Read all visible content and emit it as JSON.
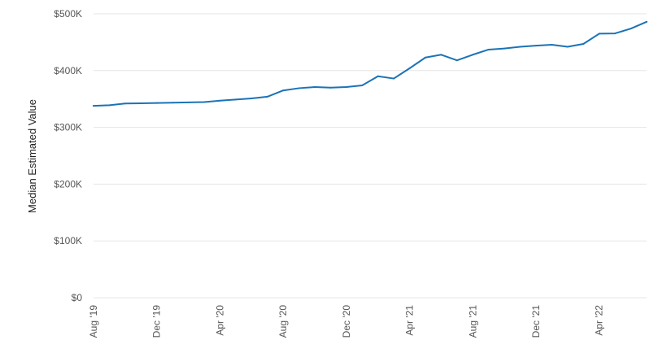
{
  "chart_data": {
    "type": "line",
    "ylabel": "Median Estimated Value",
    "ylim": [
      0,
      500000
    ],
    "y_ticks": [
      0,
      100000,
      200000,
      300000,
      400000,
      500000
    ],
    "y_tick_labels": [
      "$0",
      "$100K",
      "$200K",
      "$300K",
      "$400K",
      "$500K"
    ],
    "x_tick_labels": [
      "Aug '19",
      "Dec '19",
      "Apr '20",
      "Aug '20",
      "Dec '20",
      "Apr '21",
      "Aug '21",
      "Dec '21",
      "Apr '22"
    ],
    "x": [
      "2019-08",
      "2019-09",
      "2019-10",
      "2019-11",
      "2019-12",
      "2020-01",
      "2020-02",
      "2020-03",
      "2020-04",
      "2020-05",
      "2020-06",
      "2020-07",
      "2020-08",
      "2020-09",
      "2020-10",
      "2020-11",
      "2020-12",
      "2021-01",
      "2021-02",
      "2021-03",
      "2021-04",
      "2021-05",
      "2021-06",
      "2021-07",
      "2021-08",
      "2021-09",
      "2021-10",
      "2021-11",
      "2021-12",
      "2022-01",
      "2022-02",
      "2022-03",
      "2022-04",
      "2022-05",
      "2022-06",
      "2022-07"
    ],
    "series": [
      {
        "color": "#1a73b8",
        "values": [
          338000,
          339000,
          342000,
          342500,
          343000,
          343500,
          344000,
          344500,
          347000,
          349000,
          351000,
          354000,
          365000,
          369000,
          371000,
          370000,
          371000,
          374000,
          390000,
          386000,
          404000,
          423000,
          428000,
          418000,
          428000,
          437000,
          439000,
          442000,
          444000,
          445500,
          442000,
          447000,
          465000,
          465500,
          474000,
          486000
        ]
      }
    ],
    "grid": true,
    "legend": false
  }
}
